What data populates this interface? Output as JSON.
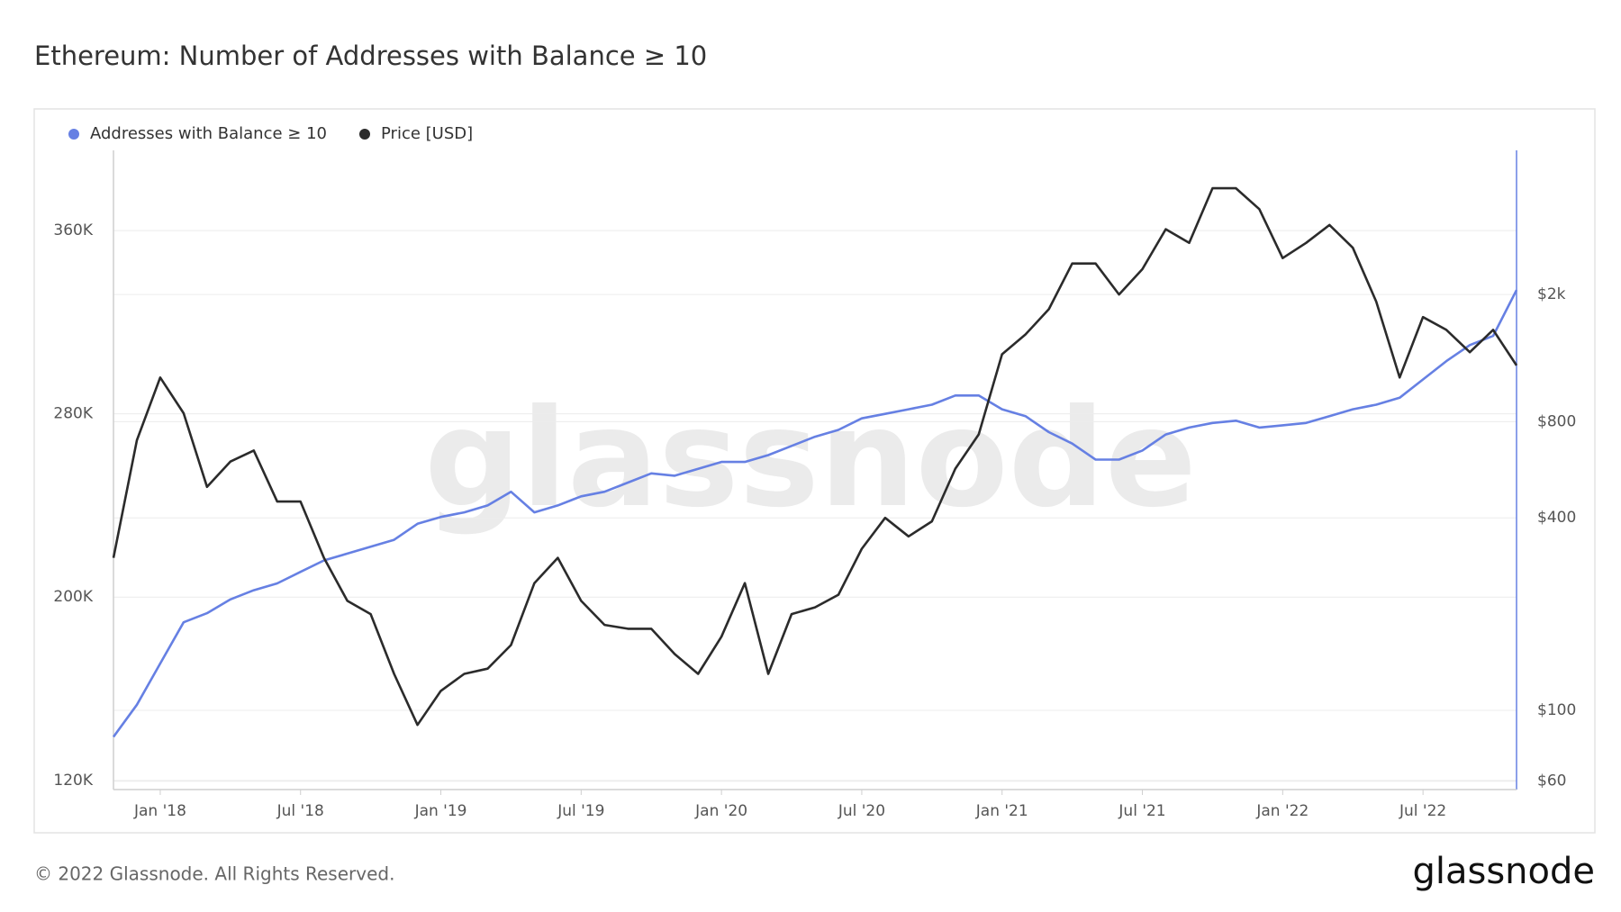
{
  "chart_data": {
    "type": "line",
    "title": "Ethereum: Number of Addresses with Balance ≥ 10",
    "watermark": "glassnode",
    "footer": "© 2022 Glassnode. All Rights Reserved.",
    "logo": "glassnode",
    "x": [
      "Nov '17",
      "Dec '17",
      "Jan '18",
      "Feb '18",
      "Mar '18",
      "Apr '18",
      "May '18",
      "Jun '18",
      "Jul '18",
      "Aug '18",
      "Sep '18",
      "Oct '18",
      "Nov '18",
      "Dec '18",
      "Jan '19",
      "Feb '19",
      "Mar '19",
      "Apr '19",
      "May '19",
      "Jun '19",
      "Jul '19",
      "Aug '19",
      "Sep '19",
      "Oct '19",
      "Nov '19",
      "Dec '19",
      "Jan '20",
      "Feb '20",
      "Mar '20",
      "Apr '20",
      "May '20",
      "Jun '20",
      "Jul '20",
      "Aug '20",
      "Sep '20",
      "Oct '20",
      "Nov '20",
      "Dec '20",
      "Jan '21",
      "Feb '21",
      "Mar '21",
      "Apr '21",
      "May '21",
      "Jun '21",
      "Jul '21",
      "Aug '21",
      "Sep '21",
      "Oct '21",
      "Nov '21",
      "Dec '21",
      "Jan '22",
      "Feb '22",
      "Mar '22",
      "Apr '22",
      "May '22",
      "Jun '22",
      "Jul '22",
      "Aug '22",
      "Sep '22",
      "Oct '22",
      "Nov '22"
    ],
    "xticks": [
      "Jan '18",
      "Jul '18",
      "Jan '19",
      "Jul '19",
      "Jan '20",
      "Jul '20",
      "Jan '21",
      "Jul '21",
      "Jan '22",
      "Jul '22"
    ],
    "series": [
      {
        "name": "Addresses with Balance ≥ 10",
        "color": "#6680e3",
        "axis": "y",
        "values": [
          139000,
          153000,
          171000,
          189000,
          193000,
          199000,
          203000,
          206000,
          211000,
          216000,
          219000,
          222000,
          225000,
          232000,
          235000,
          237000,
          240000,
          246000,
          237000,
          240000,
          244000,
          246000,
          250000,
          254000,
          253000,
          256000,
          259000,
          259000,
          262000,
          266000,
          270000,
          273000,
          278000,
          280000,
          282000,
          284000,
          288000,
          288000,
          282000,
          279000,
          272000,
          267000,
          260000,
          260000,
          264000,
          271000,
          274000,
          276000,
          277000,
          274000,
          275000,
          276000,
          279000,
          282000,
          284000,
          287000,
          295000,
          303000,
          310000,
          314000,
          334000
        ]
      },
      {
        "name": "Price [USD]",
        "color": "#2b2b2b",
        "axis": "y2",
        "values": [
          300,
          700,
          1100,
          850,
          500,
          600,
          650,
          450,
          450,
          300,
          220,
          200,
          130,
          90,
          115,
          130,
          135,
          160,
          250,
          300,
          220,
          185,
          180,
          180,
          150,
          130,
          170,
          250,
          130,
          200,
          210,
          230,
          320,
          400,
          350,
          390,
          570,
          730,
          1300,
          1500,
          1800,
          2500,
          2500,
          2000,
          2400,
          3200,
          2900,
          4300,
          4300,
          3700,
          2600,
          2900,
          3300,
          2800,
          1900,
          1100,
          1700,
          1550,
          1320,
          1550,
          1200
        ]
      }
    ],
    "ylim": [
      116000,
      395000
    ],
    "yticks": [
      {
        "value": 120000,
        "label": "120K"
      },
      {
        "value": 200000,
        "label": "200K"
      },
      {
        "value": 280000,
        "label": "280K"
      },
      {
        "value": 360000,
        "label": "360K"
      }
    ],
    "y2lim": [
      56.5,
      5650
    ],
    "y2scale": "log",
    "y2ticks": [
      {
        "value": 60,
        "label": "$60"
      },
      {
        "value": 100,
        "label": "$100"
      },
      {
        "value": 400,
        "label": "$400"
      },
      {
        "value": 800,
        "label": "$800"
      },
      {
        "value": 2000,
        "label": "$2k"
      }
    ],
    "grid": true,
    "legend": "top-left"
  }
}
